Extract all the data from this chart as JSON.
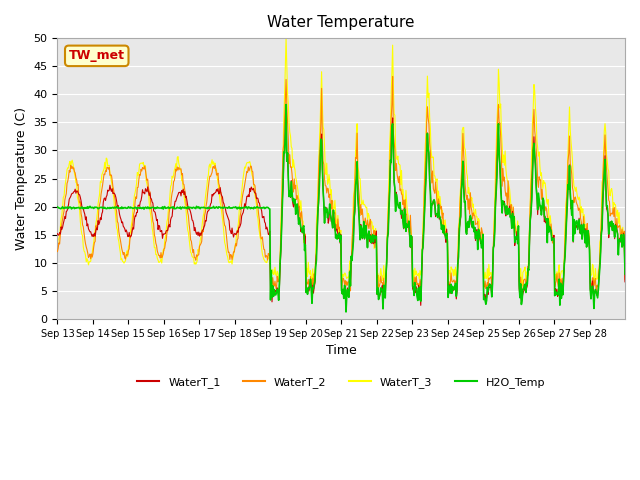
{
  "title": "Water Temperature",
  "xlabel": "Time",
  "ylabel": "Water Temperature (C)",
  "ylim": [
    0,
    50
  ],
  "yticks": [
    0,
    5,
    10,
    15,
    20,
    25,
    30,
    35,
    40,
    45,
    50
  ],
  "x_labels": [
    "Sep 13",
    "Sep 14",
    "Sep 15",
    "Sep 16",
    "Sep 17",
    "Sep 18",
    "Sep 19",
    "Sep 20",
    "Sep 21",
    "Sep 22",
    "Sep 23",
    "Sep 24",
    "Sep 25",
    "Sep 26",
    "Sep 27",
    "Sep 28"
  ],
  "color_wt1": "#cc0000",
  "color_wt2": "#ff8800",
  "color_wt3": "#ffff00",
  "color_h2o": "#00cc00",
  "bg_color": "#e8e8e8",
  "annotation_text": "TW_met",
  "annotation_bg": "#ffffcc",
  "annotation_border": "#cc8800",
  "annotation_text_color": "#cc0000"
}
